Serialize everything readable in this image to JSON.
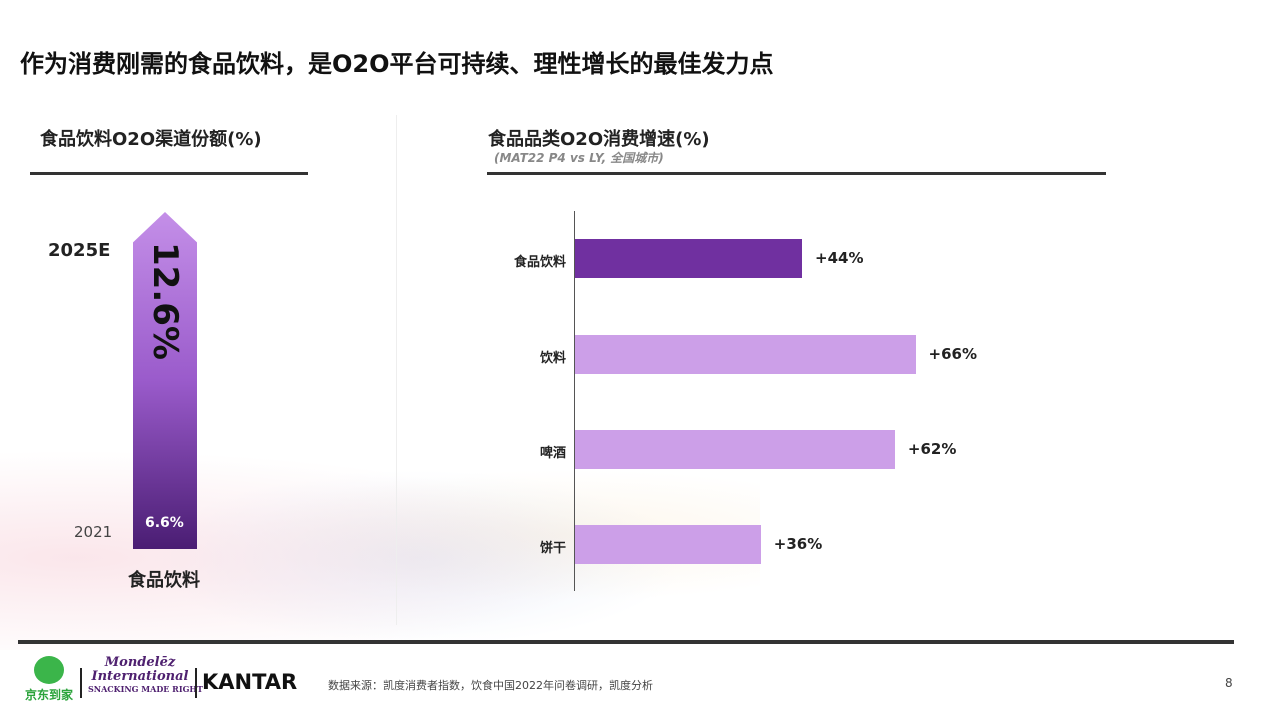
{
  "title": "作为消费刚需的食品饮料，是O2O平台可持续、理性增长的最佳发力点",
  "left": {
    "heading": "食品饮料O2O渠道份额(%)",
    "year_top": "2025E",
    "value_top": "12.6%",
    "year_bottom": "2021",
    "value_bottom": "6.6%",
    "category": "食品饮料"
  },
  "chart_data": {
    "type": "bar",
    "orientation": "horizontal",
    "title": "食品品类O2O消费增速(%)",
    "subtitle": "(MAT22 P4  vs LY, 全国城市)",
    "categories": [
      "食品饮料",
      "饮料",
      "啤酒",
      "饼干"
    ],
    "values": [
      44,
      66,
      62,
      36
    ],
    "labels": [
      "+44%",
      "+66%",
      "+62%",
      "+36%"
    ],
    "colors": [
      "#7030a0",
      "#cc9fe8",
      "#cc9fe8",
      "#cc9fe8"
    ],
    "xlim": [
      0,
      70
    ]
  },
  "footer": {
    "source": "数据来源：凯度消费者指数，饮食中国2022年问卷调研，凯度分析",
    "page": "8",
    "logos": [
      "京东到家",
      "Mondelēz International",
      "SNACKING MADE RIGHT",
      "KANTAR"
    ]
  }
}
